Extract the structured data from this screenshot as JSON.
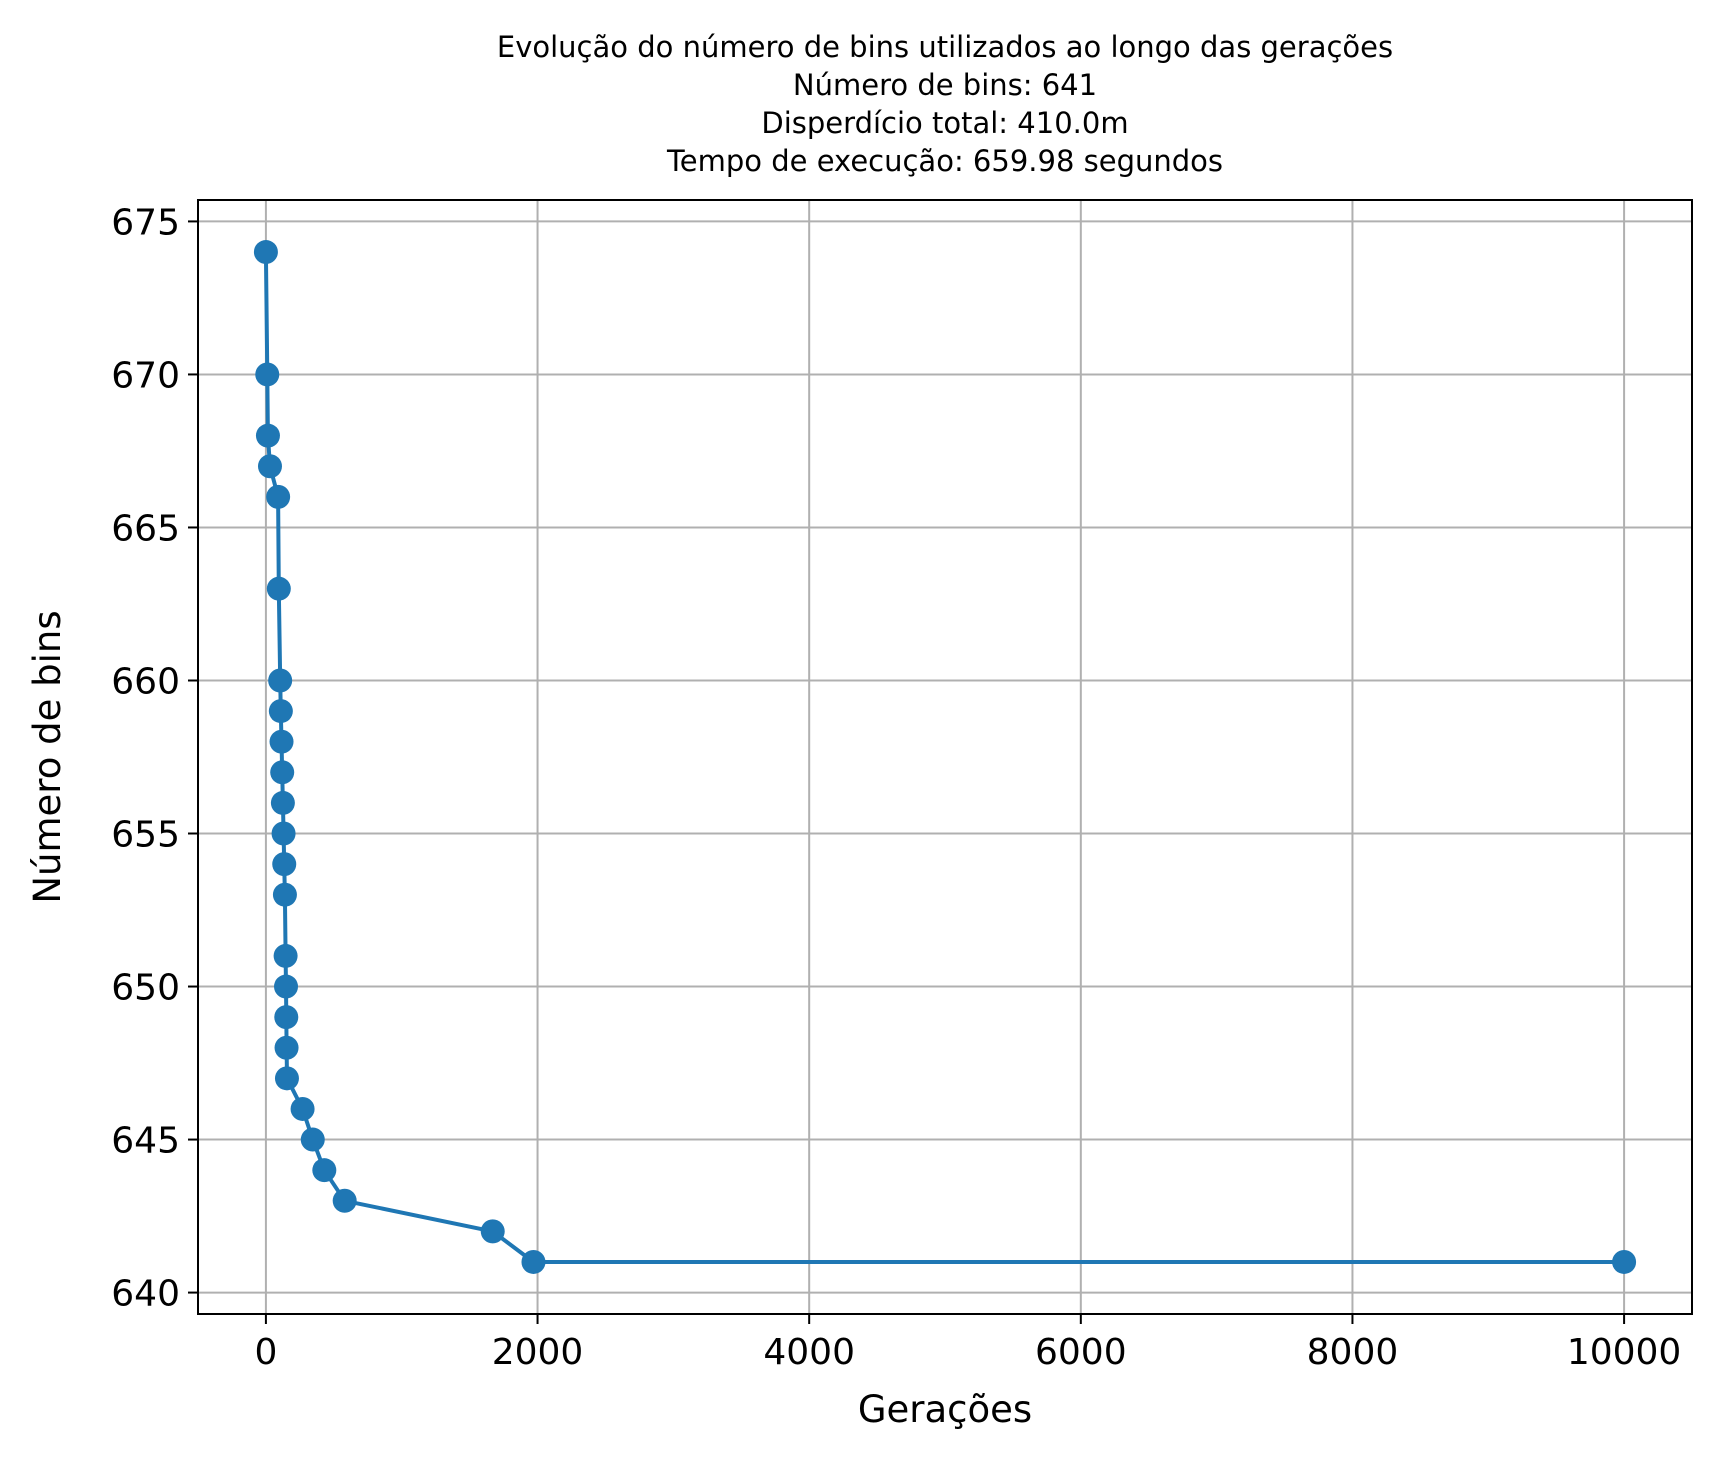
{
  "chart_data": {
    "type": "line",
    "title_lines": [
      "Evolução do número de bins utilizados ao longo das gerações",
      "Número de bins: 641",
      "Disperdício total: 410.0m",
      "Tempo de execução: 659.98 segundos"
    ],
    "xlabel": "Gerações",
    "ylabel": "Número de bins",
    "xlim": [
      -500,
      10500
    ],
    "ylim": [
      639.3,
      675.7
    ],
    "x_ticks": [
      0,
      2000,
      4000,
      6000,
      8000,
      10000
    ],
    "y_ticks": [
      640,
      645,
      650,
      655,
      660,
      665,
      670,
      675
    ],
    "grid": true,
    "marker": "circle",
    "series": [
      {
        "color": "#1f77b4",
        "points": [
          [
            0,
            674
          ],
          [
            10,
            670
          ],
          [
            15,
            668
          ],
          [
            30,
            667
          ],
          [
            90,
            666
          ],
          [
            95,
            663
          ],
          [
            105,
            660
          ],
          [
            110,
            659
          ],
          [
            115,
            658
          ],
          [
            120,
            657
          ],
          [
            125,
            656
          ],
          [
            130,
            655
          ],
          [
            135,
            654
          ],
          [
            140,
            653
          ],
          [
            145,
            651
          ],
          [
            148,
            650
          ],
          [
            150,
            649
          ],
          [
            152,
            648
          ],
          [
            155,
            647
          ],
          [
            270,
            646
          ],
          [
            345,
            645
          ],
          [
            430,
            644
          ],
          [
            580,
            643
          ],
          [
            1670,
            642
          ],
          [
            1970,
            641
          ],
          [
            10000,
            641
          ]
        ]
      }
    ]
  }
}
